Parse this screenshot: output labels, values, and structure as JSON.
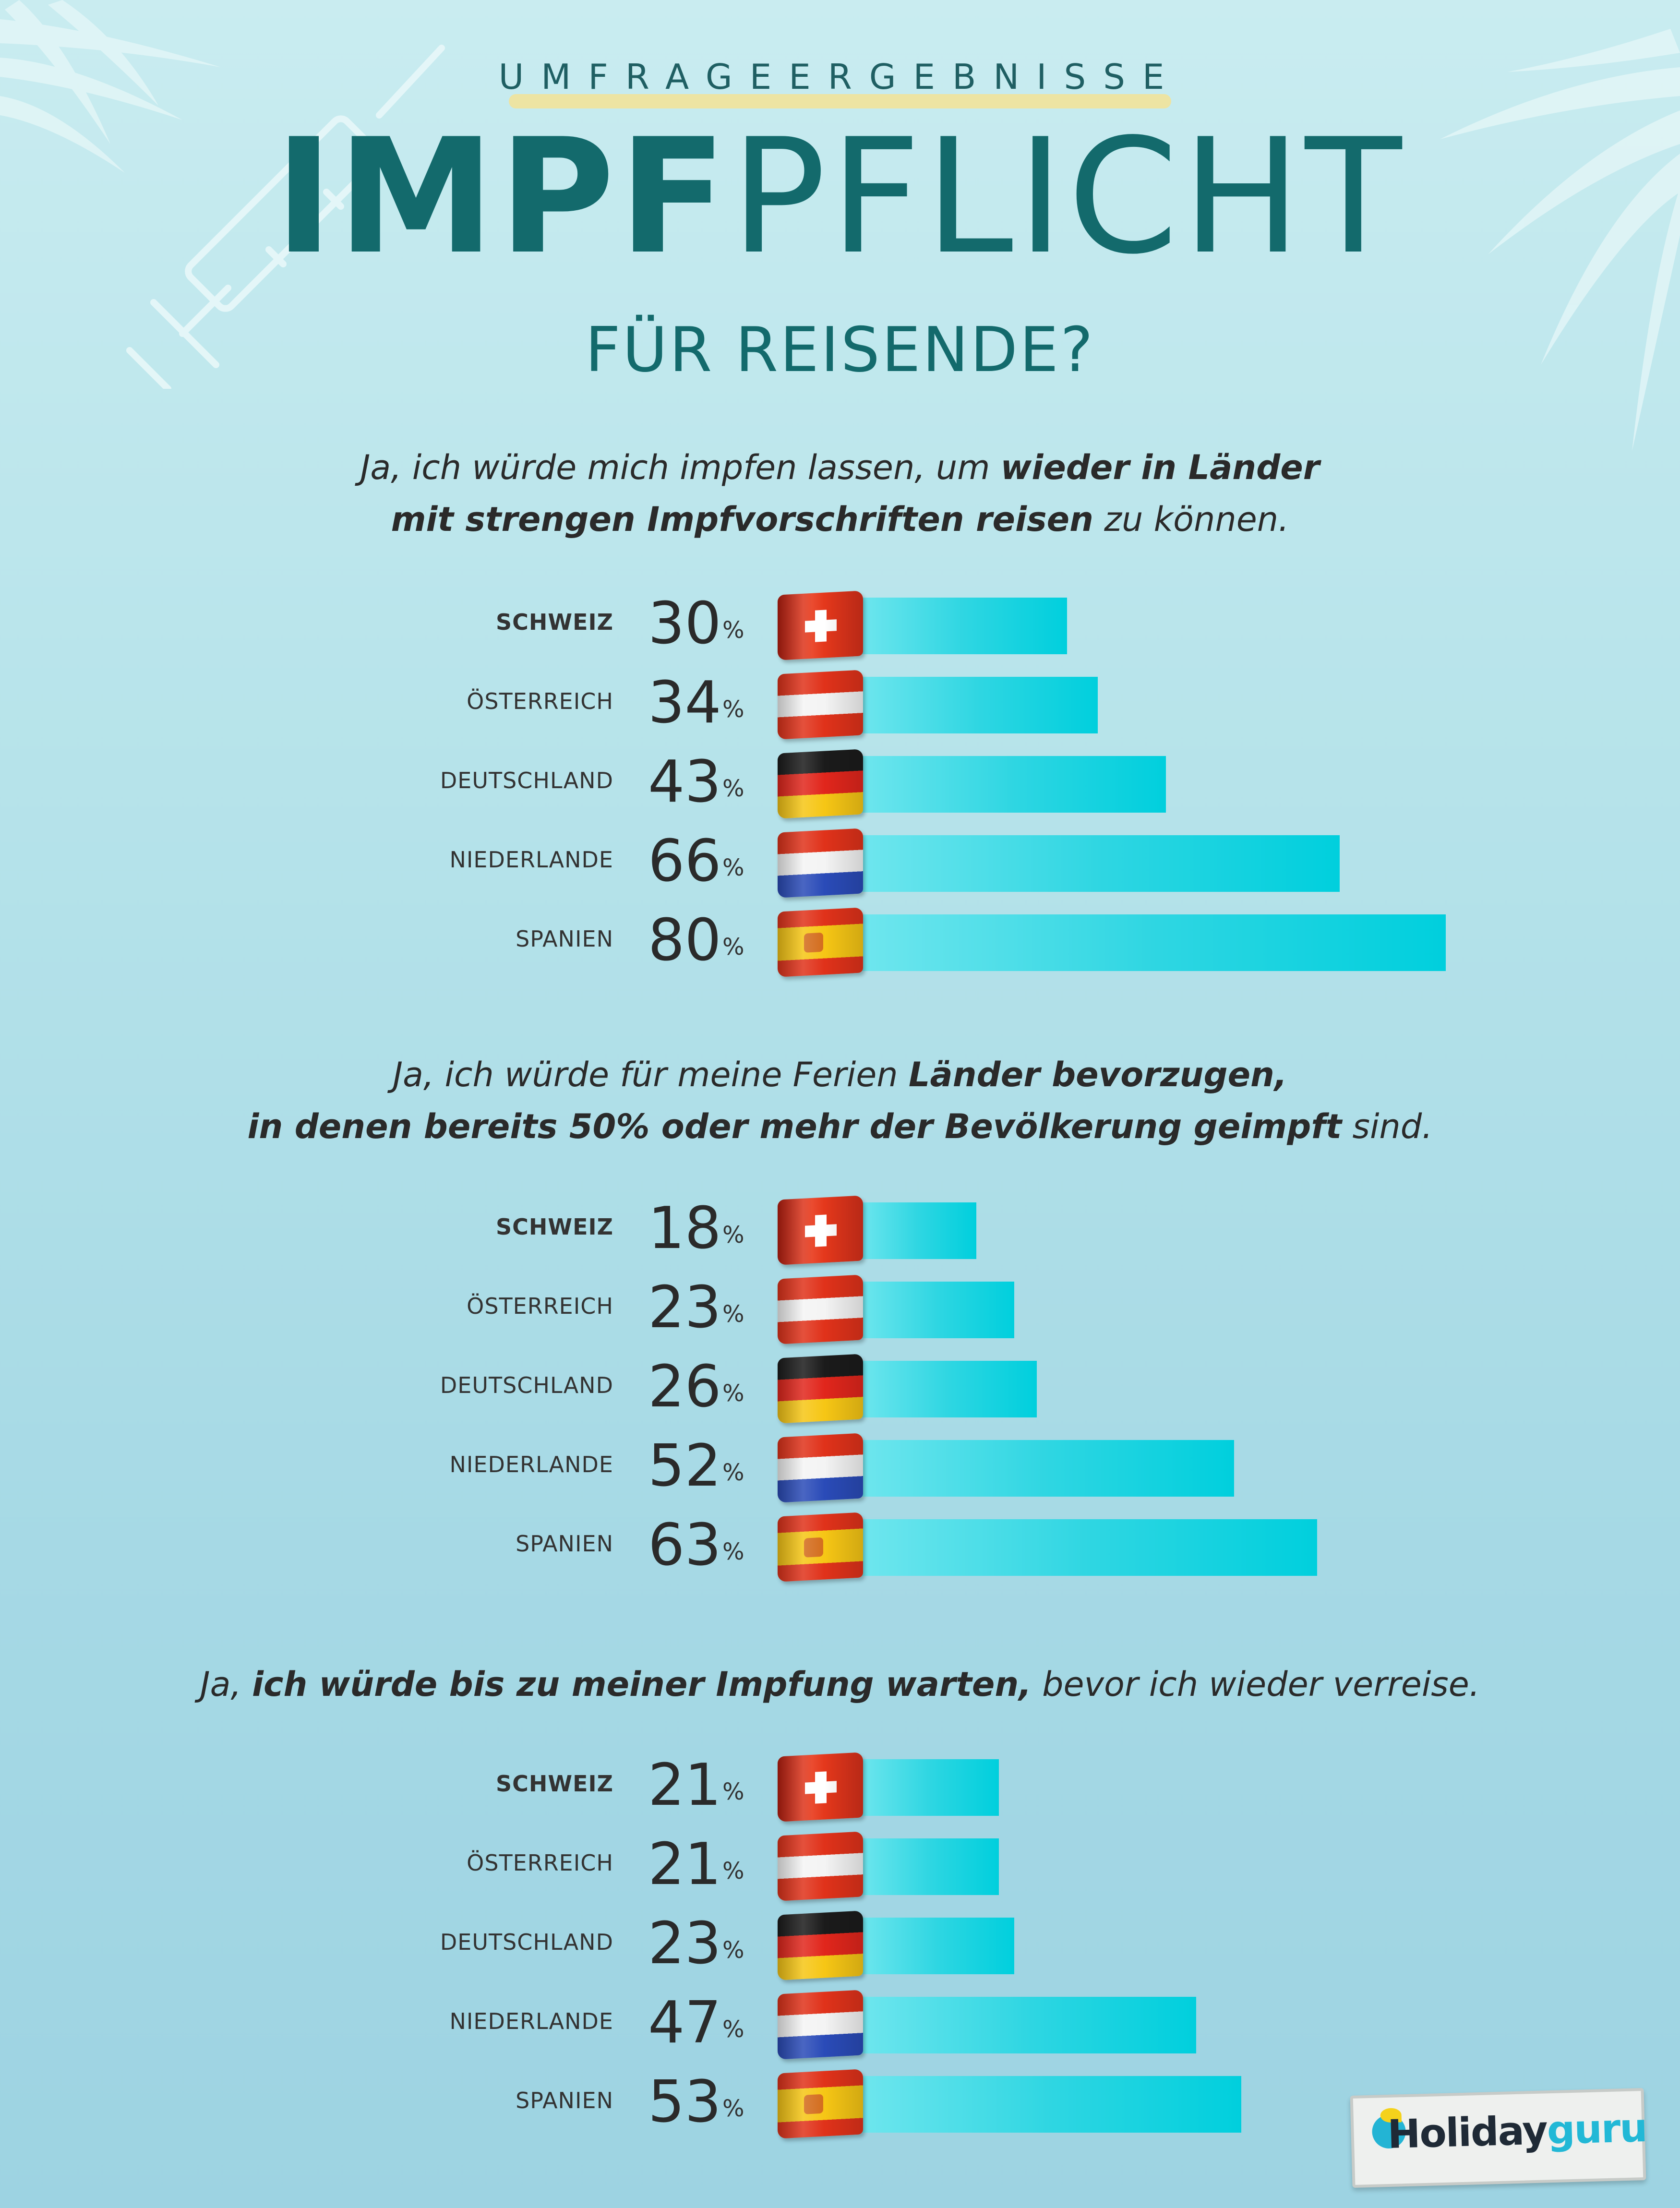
{
  "header": {
    "kicker": "UMFRAGEERGEBNISSE",
    "title_bold": "IMPF",
    "title_light": "PFLICHT",
    "subtitle": "FÜR REISENDE?"
  },
  "colors": {
    "background": "#b6e3ea",
    "title": "#136a6c",
    "bar": "#00cfdd",
    "kicker_highlight": "#f1e39a"
  },
  "icons": [
    "syringe-icon",
    "palm-leaf-icon",
    "palm-leaf-icon"
  ],
  "logo": {
    "part1": "Holiday",
    "part2": "guru"
  },
  "chart_data": [
    {
      "type": "bar",
      "orientation": "horizontal",
      "question": {
        "parts": [
          {
            "text": "Ja, ich würde mich impfen lassen, um ",
            "bold": false
          },
          {
            "text": "wieder in Länder",
            "bold": true
          },
          {
            "text": "\n",
            "bold": false
          },
          {
            "text": "mit strengen Impfvorschriften reisen",
            "bold": true
          },
          {
            "text": " zu können.",
            "bold": false
          }
        ]
      },
      "categories": [
        "SCHWEIZ",
        "ÖSTERREICH",
        "DEUTSCHLAND",
        "NIEDERLANDE",
        "SPANIEN"
      ],
      "flags": [
        "ch",
        "at",
        "de",
        "nl",
        "es"
      ],
      "values": [
        30,
        34,
        43,
        66,
        80
      ],
      "unit": "%",
      "ylim": [
        0,
        80
      ]
    },
    {
      "type": "bar",
      "orientation": "horizontal",
      "question": {
        "parts": [
          {
            "text": "Ja, ich würde für meine Ferien ",
            "bold": false
          },
          {
            "text": "Länder bevorzugen,",
            "bold": true
          },
          {
            "text": "\n",
            "bold": false
          },
          {
            "text": "in denen bereits 50% oder mehr der Bevölkerung geimpft",
            "bold": true
          },
          {
            "text": " sind.",
            "bold": false
          }
        ]
      },
      "categories": [
        "SCHWEIZ",
        "ÖSTERREICH",
        "DEUTSCHLAND",
        "NIEDERLANDE",
        "SPANIEN"
      ],
      "flags": [
        "ch",
        "at",
        "de",
        "nl",
        "es"
      ],
      "values": [
        18,
        23,
        26,
        52,
        63
      ],
      "unit": "%",
      "ylim": [
        0,
        80
      ]
    },
    {
      "type": "bar",
      "orientation": "horizontal",
      "question": {
        "parts": [
          {
            "text": "Ja, ",
            "bold": false
          },
          {
            "text": "ich würde bis zu meiner Impfung warten,",
            "bold": true
          },
          {
            "text": " bevor ich wieder verreise.",
            "bold": false
          }
        ]
      },
      "categories": [
        "SCHWEIZ",
        "ÖSTERREICH",
        "DEUTSCHLAND",
        "NIEDERLANDE",
        "SPANIEN"
      ],
      "flags": [
        "ch",
        "at",
        "de",
        "nl",
        "es"
      ],
      "values": [
        21,
        21,
        23,
        47,
        53
      ],
      "unit": "%",
      "ylim": [
        0,
        80
      ]
    }
  ]
}
